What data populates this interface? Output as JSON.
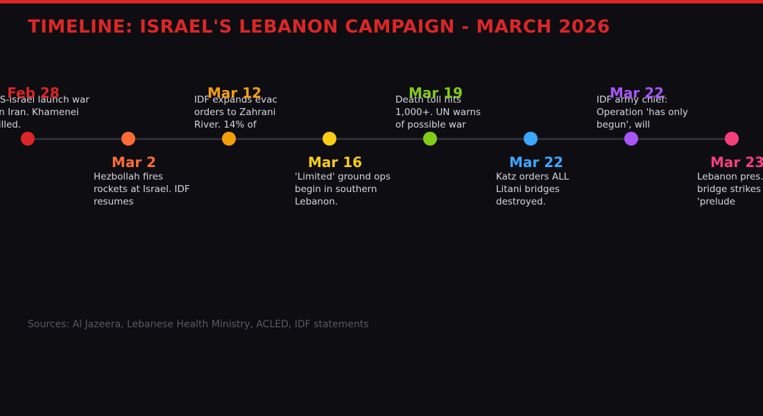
{
  "title": "TIMELINE: ISRAEL'S LEBANON CAMPAIGN - MARCH 2026",
  "sources": "Sources: Al Jazeera, Lebanese Health Ministry, ACLED, IDF statements",
  "events": [
    {
      "date": "Feb 28",
      "text": "US-Israel launch war on Iran. Khamenei killed.",
      "color": "#dc2626",
      "position": "above"
    },
    {
      "date": "Mar 2",
      "text": "Hezbollah fires rockets at Israel. IDF resumes",
      "color": "#ff6b35",
      "position": "below"
    },
    {
      "date": "Mar 12",
      "text": "IDF expands evac orders to Zahrani River. 14% of",
      "color": "#f59e0b",
      "position": "above"
    },
    {
      "date": "Mar 16",
      "text": "'Limited' ground ops begin in southern Lebanon.",
      "color": "#facc15",
      "position": "below"
    },
    {
      "date": "Mar 19",
      "text": "Death toll hits 1,000+. UN warns of possible war",
      "color": "#84cc16",
      "position": "above"
    },
    {
      "date": "Mar 22",
      "text": "Katz orders ALL Litani bridges destroyed.",
      "color": "#3ba7ff",
      "position": "below"
    },
    {
      "date": "Mar 22",
      "text": "IDF army chief: Operation 'has only begun', will",
      "color": "#a855f7",
      "position": "above"
    },
    {
      "date": "Mar 23",
      "text": "Lebanon pres. calls bridge strikes 'prelude",
      "color": "#f43f7a",
      "position": "below"
    }
  ]
}
